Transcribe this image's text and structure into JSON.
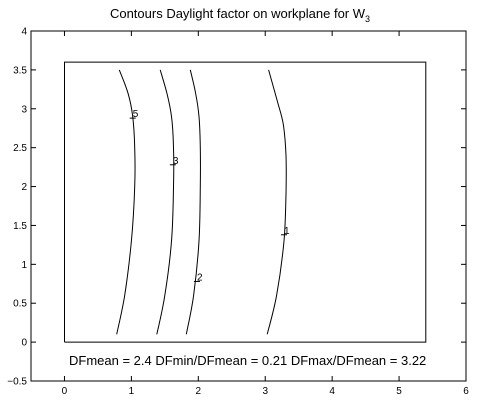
{
  "chart_data": {
    "type": "line",
    "title": "Contours Daylight factor on workplane  for W",
    "title_subscript": "3",
    "xlabel": "",
    "ylabel": "",
    "xlim": [
      -0.5,
      6
    ],
    "ylim": [
      -0.5,
      4
    ],
    "xticks": [
      0,
      1,
      2,
      3,
      4,
      5,
      6
    ],
    "yticks": [
      -0.5,
      0,
      0.5,
      1,
      1.5,
      2,
      2.5,
      3,
      3.5,
      4
    ],
    "xtick_labels": [
      "0",
      "1",
      "2",
      "3",
      "4",
      "5",
      "6"
    ],
    "ytick_labels": [
      "−0.5",
      "0",
      "0.5",
      "1",
      "1.5",
      "2",
      "2.5",
      "3",
      "3.5",
      "4"
    ],
    "grid": false,
    "room_outline": {
      "x": [
        0,
        5.4,
        5.4,
        0,
        0
      ],
      "y": [
        0,
        0,
        3.6,
        3.6,
        0
      ]
    },
    "series": [
      {
        "label": "5",
        "label_at": [
          1.02,
          2.88
        ],
        "x": [
          0.78,
          0.9,
          1.0,
          1.05,
          1.05,
          1.02,
          0.95,
          0.82
        ],
        "y": [
          0.1,
          0.6,
          1.3,
          2.0,
          2.5,
          2.9,
          3.2,
          3.5
        ]
      },
      {
        "label": "3",
        "label_at": [
          1.62,
          2.28
        ],
        "x": [
          1.38,
          1.5,
          1.6,
          1.63,
          1.63,
          1.6,
          1.53,
          1.43
        ],
        "y": [
          0.1,
          0.6,
          1.3,
          2.0,
          2.5,
          2.9,
          3.2,
          3.5
        ]
      },
      {
        "label": "2",
        "label_at": [
          1.98,
          0.78
        ],
        "x": [
          1.82,
          1.93,
          2.01,
          2.03,
          2.03,
          2.01,
          1.96,
          1.88
        ],
        "y": [
          0.1,
          0.6,
          1.3,
          2.0,
          2.5,
          2.9,
          3.2,
          3.5
        ]
      },
      {
        "label": "1",
        "label_at": [
          3.28,
          1.38
        ],
        "x": [
          3.03,
          3.17,
          3.28,
          3.31,
          3.31,
          3.27,
          3.18,
          3.05
        ],
        "y": [
          0.1,
          0.6,
          1.3,
          1.9,
          2.4,
          2.8,
          3.1,
          3.5
        ]
      }
    ],
    "stats_text": "DFmean =  2.4    DFmin/DFmean = 0.21    DFmax/DFmean =  3.22"
  }
}
